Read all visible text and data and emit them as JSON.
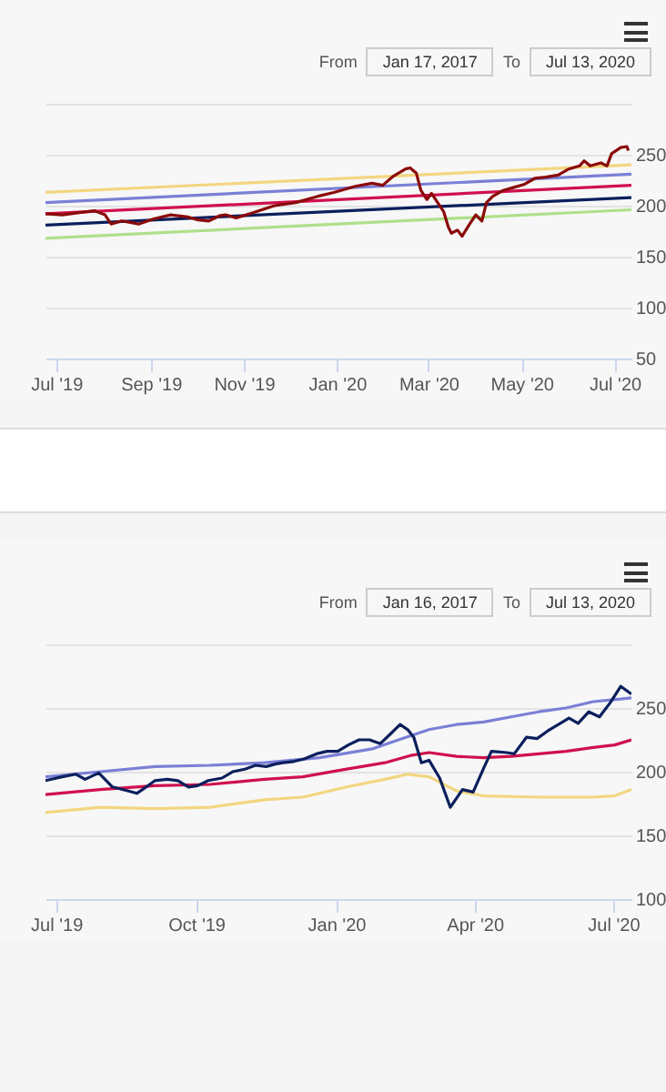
{
  "chart_data": [
    {
      "type": "line",
      "annotations": [
        "From",
        "Jan 17, 2017",
        "To",
        "Jul 13, 2020"
      ],
      "xlim": [
        "2019-06-24",
        "2020-07-12"
      ],
      "xticks": [
        {
          "value": "2019-07-01",
          "label": "Jul '19"
        },
        {
          "value": "2019-09-01",
          "label": "Sep '19"
        },
        {
          "value": "2019-11-01",
          "label": "Nov '19"
        },
        {
          "value": "2020-01-01",
          "label": "Jan '20"
        },
        {
          "value": "2020-03-01",
          "label": "Mar '20"
        },
        {
          "value": "2020-05-01",
          "label": "May '20"
        },
        {
          "value": "2020-07-01",
          "label": "Jul '20"
        }
      ],
      "ylim": [
        50,
        300
      ],
      "yticks": [
        50,
        100,
        150,
        200,
        250,
        {
          "value": 300,
          "label": null
        }
      ],
      "grid": "y",
      "series": [
        {
          "color": "#f2d680",
          "x": [
            "2019-06-24",
            "2020-07-12"
          ],
          "values": [
            213,
            240
          ]
        },
        {
          "color": "#7b7fd6",
          "x": [
            "2019-06-24",
            "2020-07-12"
          ],
          "values": [
            203,
            231
          ]
        },
        {
          "color": "#d0104c",
          "x": [
            "2019-06-24",
            "2020-07-12"
          ],
          "values": [
            192,
            220
          ]
        },
        {
          "color": "#0b1f5c",
          "x": [
            "2019-06-24",
            "2020-07-12"
          ],
          "values": [
            181,
            208
          ]
        },
        {
          "color": "#aee08a",
          "x": [
            "2019-06-24",
            "2020-07-12"
          ],
          "values": [
            168,
            196
          ]
        },
        {
          "color": "#8b0a0a",
          "x": [
            "2019-06-24",
            "2019-07-05",
            "2019-07-15",
            "2019-07-26",
            "2019-08-02",
            "2019-08-06",
            "2019-08-13",
            "2019-08-24",
            "2019-09-03",
            "2019-09-14",
            "2019-09-25",
            "2019-10-02",
            "2019-10-09",
            "2019-10-16",
            "2019-10-20",
            "2019-10-27",
            "2019-11-07",
            "2019-11-21",
            "2019-12-05",
            "2019-12-19",
            "2019-12-30",
            "2020-01-13",
            "2020-01-24",
            "2020-01-31",
            "2020-02-07",
            "2020-02-15",
            "2020-02-18",
            "2020-02-22",
            "2020-02-25",
            "2020-02-29",
            "2020-03-03",
            "2020-03-07",
            "2020-03-11",
            "2020-03-14",
            "2020-03-16",
            "2020-03-20",
            "2020-03-23",
            "2020-03-28",
            "2020-04-01",
            "2020-04-05",
            "2020-04-08",
            "2020-04-12",
            "2020-04-19",
            "2020-04-26",
            "2020-05-03",
            "2020-05-10",
            "2020-05-17",
            "2020-05-25",
            "2020-06-01",
            "2020-06-08",
            "2020-06-11",
            "2020-06-15",
            "2020-06-22",
            "2020-06-26",
            "2020-06-29",
            "2020-07-05",
            "2020-07-09",
            "2020-07-10"
          ],
          "values": [
            192,
            191,
            193,
            195,
            191,
            182,
            185,
            182,
            187,
            191,
            189,
            186,
            185,
            190,
            191,
            188,
            193,
            200,
            203,
            209,
            213,
            219,
            222,
            220,
            229,
            236,
            237,
            232,
            215,
            206,
            212,
            203,
            194,
            179,
            173,
            176,
            170,
            182,
            191,
            185,
            203,
            209,
            215,
            218,
            221,
            227,
            228,
            230,
            236,
            239,
            244,
            239,
            242,
            239,
            251,
            257,
            258,
            254
          ]
        }
      ]
    },
    {
      "type": "line",
      "annotations": [
        "From",
        "Jan 16, 2017",
        "To",
        "Jul 13, 2020"
      ],
      "xlim": [
        "2019-06-24",
        "2020-07-13"
      ],
      "xticks": [
        {
          "value": "2019-07-01",
          "label": "Jul '19"
        },
        {
          "value": "2019-10-01",
          "label": "Oct '19"
        },
        {
          "value": "2020-01-01",
          "label": "Jan '20"
        },
        {
          "value": "2020-04-01",
          "label": "Apr '20"
        },
        {
          "value": "2020-07-01",
          "label": "Jul '20"
        }
      ],
      "ylim": [
        100,
        300
      ],
      "yticks": [
        100,
        150,
        200,
        250,
        {
          "value": 300,
          "label": null
        }
      ],
      "grid": "y",
      "series": [
        {
          "color": "#f2d680",
          "x": [
            "2019-06-24",
            "2019-07-30",
            "2019-09-04",
            "2019-10-10",
            "2019-11-15",
            "2019-12-10",
            "2020-01-08",
            "2020-02-02",
            "2020-02-17",
            "2020-03-02",
            "2020-03-20",
            "2020-04-07",
            "2020-05-13",
            "2020-06-18",
            "2020-07-02",
            "2020-07-13"
          ],
          "values": [
            168,
            172,
            171,
            172,
            178,
            180,
            188,
            194,
            198,
            196,
            185,
            181,
            180,
            180,
            181,
            186
          ]
        },
        {
          "color": "#7b7fd6",
          "x": [
            "2019-06-24",
            "2019-07-30",
            "2019-09-04",
            "2019-10-10",
            "2019-11-15",
            "2019-12-21",
            "2020-01-25",
            "2020-02-11",
            "2020-03-02",
            "2020-03-20",
            "2020-04-07",
            "2020-04-25",
            "2020-05-13",
            "2020-05-31",
            "2020-06-18",
            "2020-07-06",
            "2020-07-13"
          ],
          "values": [
            196,
            200,
            204,
            205,
            207,
            211,
            218,
            225,
            233,
            237,
            239,
            243,
            247,
            250,
            255,
            257,
            258
          ]
        },
        {
          "color": "#d0104c",
          "x": [
            "2019-06-24",
            "2019-07-30",
            "2019-09-04",
            "2019-10-10",
            "2019-11-15",
            "2019-12-10",
            "2020-01-08",
            "2020-02-02",
            "2020-02-20",
            "2020-03-02",
            "2020-03-20",
            "2020-04-07",
            "2020-04-25",
            "2020-05-13",
            "2020-05-31",
            "2020-06-18",
            "2020-07-02",
            "2020-07-13"
          ],
          "values": [
            182,
            186,
            189,
            190,
            194,
            196,
            202,
            207,
            213,
            215,
            212,
            211,
            212,
            214,
            216,
            219,
            221,
            225
          ]
        },
        {
          "color": "#0b1f5c",
          "x": [
            "2019-06-24",
            "2019-07-05",
            "2019-07-14",
            "2019-07-20",
            "2019-07-29",
            "2019-08-07",
            "2019-08-17",
            "2019-08-23",
            "2019-08-28",
            "2019-09-04",
            "2019-09-12",
            "2019-09-19",
            "2019-09-26",
            "2019-10-02",
            "2019-10-09",
            "2019-10-18",
            "2019-10-25",
            "2019-11-02",
            "2019-11-09",
            "2019-11-16",
            "2019-11-22",
            "2019-11-27",
            "2019-12-04",
            "2019-12-11",
            "2019-12-19",
            "2019-12-26",
            "2020-01-02",
            "2020-01-09",
            "2020-01-16",
            "2020-01-23",
            "2020-01-30",
            "2020-02-06",
            "2020-02-12",
            "2020-02-17",
            "2020-02-21",
            "2020-02-26",
            "2020-03-02",
            "2020-03-09",
            "2020-03-16",
            "2020-03-24",
            "2020-03-31",
            "2020-04-07",
            "2020-04-12",
            "2020-04-22",
            "2020-04-27",
            "2020-05-05",
            "2020-05-12",
            "2020-05-19",
            "2020-05-26",
            "2020-06-02",
            "2020-06-08",
            "2020-06-15",
            "2020-06-22",
            "2020-06-29",
            "2020-07-06",
            "2020-07-13"
          ],
          "values": [
            193,
            196,
            198,
            194,
            199,
            188,
            185,
            183,
            187,
            193,
            194,
            193,
            188,
            189,
            193,
            195,
            200,
            202,
            205,
            204,
            206,
            207,
            208,
            210,
            214,
            216,
            216,
            221,
            225,
            225,
            222,
            230,
            237,
            233,
            227,
            207,
            209,
            195,
            172,
            186,
            184,
            203,
            216,
            215,
            214,
            227,
            226,
            232,
            237,
            242,
            238,
            247,
            243,
            254,
            267,
            261
          ]
        }
      ]
    }
  ]
}
